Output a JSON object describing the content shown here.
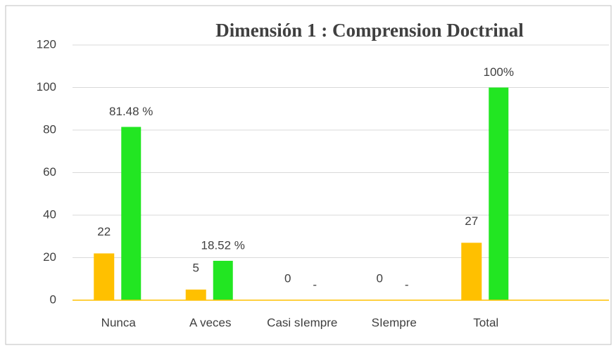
{
  "chart_data": {
    "type": "bar",
    "title": "Dimensión 1 : Comprension Doctrinal",
    "categories": [
      "Nunca",
      "A veces",
      "Casi sIempre",
      "SIempre",
      "Total"
    ],
    "series": [
      {
        "color": "#ffc000",
        "values": [
          22,
          5,
          0,
          0,
          27
        ],
        "value_labels": [
          "22",
          "5",
          "0",
          "0",
          "27"
        ]
      },
      {
        "color": "#22e622",
        "values": [
          81.48,
          18.52,
          0,
          0,
          100
        ],
        "value_labels": [
          "81.48 %",
          "18.52 %",
          "-",
          "-",
          "100%"
        ]
      }
    ],
    "ylim": [
      0,
      120
    ],
    "yticks": [
      0,
      20,
      40,
      60,
      80,
      100,
      120
    ],
    "grid": true
  }
}
